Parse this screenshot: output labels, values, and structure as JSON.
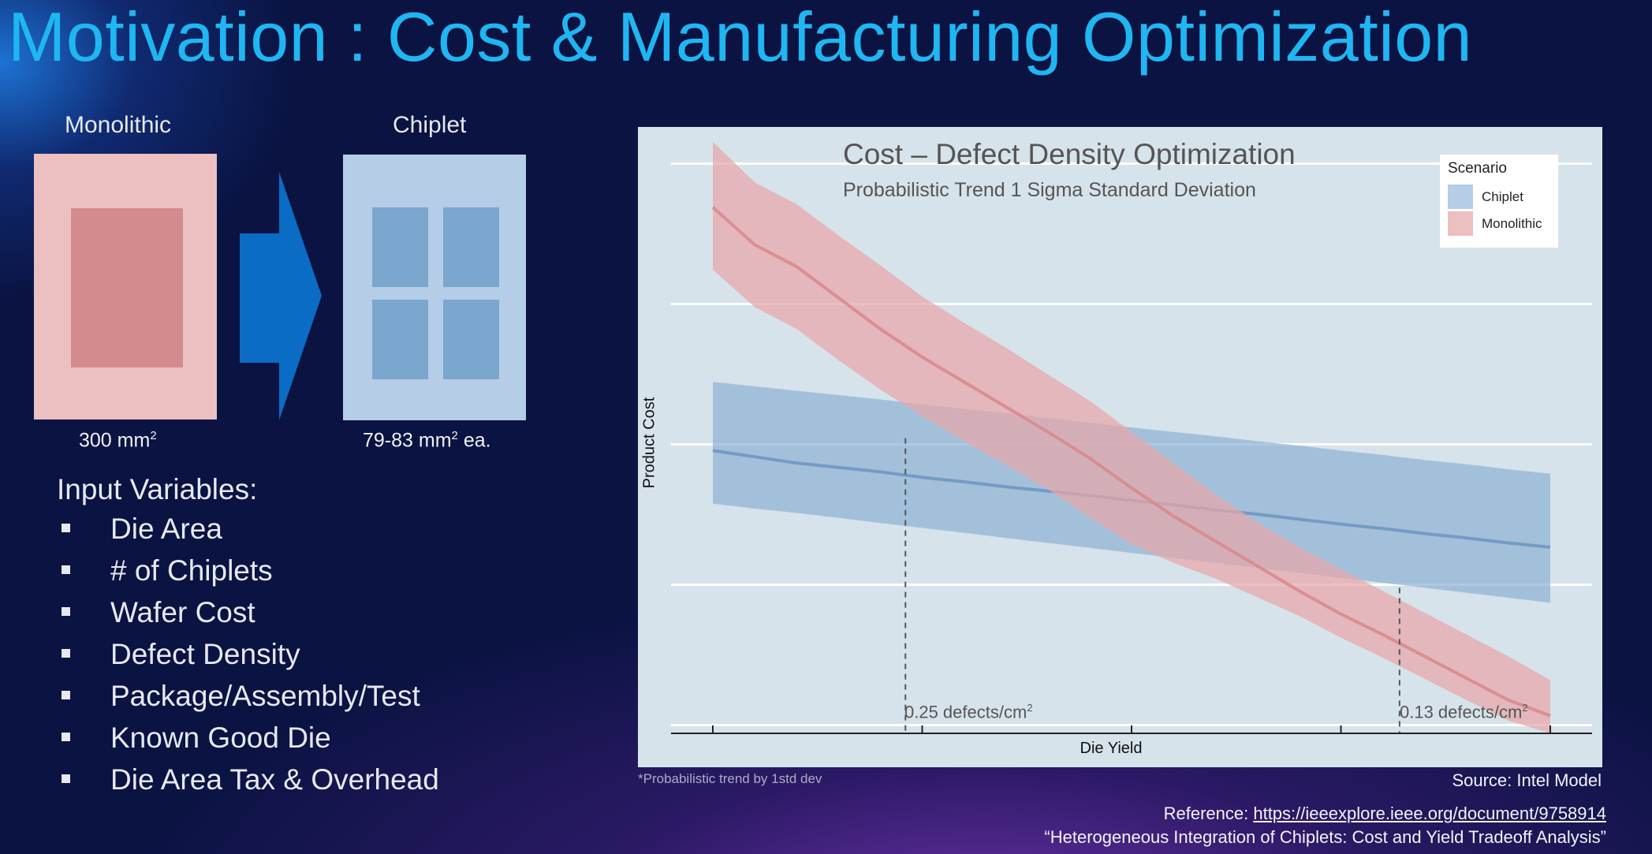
{
  "slide": {
    "title": "Motivation : Cost & Manufacturing Optimization"
  },
  "diagram": {
    "monolithic_label": "Monolithic",
    "chiplet_label": "Chiplet",
    "monolithic_area": "300 mm",
    "monolithic_area_sup": "2",
    "chiplet_area_pre": "79-83 mm",
    "chiplet_area_sup": "2",
    "chiplet_area_post": " ea.",
    "colors": {
      "monolithic_outer": "#ecbfc0",
      "monolithic_inner": "#d48b8e",
      "chiplet_outer": "#b5cde6",
      "chiplet_die": "#7ba6cd",
      "arrow": "#0a6cc4"
    }
  },
  "inputs": {
    "heading": "Input Variables:",
    "items": [
      "Die Area",
      "# of Chiplets",
      "Wafer Cost",
      "Defect Density",
      "Package/Assembly/Test",
      "Known Good Die",
      "Die Area Tax & Overhead"
    ]
  },
  "chart_data": {
    "type": "area",
    "title": "Cost – Defect Density Optimization",
    "subtitle": "Probabilistic Trend 1 Sigma Standard Deviation",
    "xlabel": "Die Yield",
    "ylabel": "Product Cost",
    "xlim": [
      0,
      1
    ],
    "ylim": [
      0,
      1
    ],
    "grid": true,
    "x_ticks": [
      0,
      0.25,
      0.5,
      0.75,
      1
    ],
    "y_grid": [
      0.05,
      0.275,
      0.5,
      0.725,
      0.95
    ],
    "legend": {
      "title": "Scenario",
      "position": "top-right",
      "entries": [
        "Chiplet",
        "Monolithic"
      ]
    },
    "x": [
      0,
      0.05,
      0.1,
      0.15,
      0.2,
      0.25,
      0.3,
      0.35,
      0.4,
      0.45,
      0.5,
      0.55,
      0.6,
      0.65,
      0.7,
      0.75,
      0.8,
      0.85,
      0.9,
      0.95,
      1
    ],
    "series": [
      {
        "name": "Chiplet",
        "color": "#8fb3d6",
        "line_color": "#6f97c2",
        "mean": [
          0.49,
          0.48,
          0.47,
          0.463,
          0.456,
          0.447,
          0.44,
          0.432,
          0.425,
          0.418,
          0.41,
          0.403,
          0.395,
          0.388,
          0.38,
          0.372,
          0.365,
          0.357,
          0.35,
          0.342,
          0.335
        ],
        "lower": [
          0.405,
          0.397,
          0.39,
          0.382,
          0.374,
          0.366,
          0.358,
          0.35,
          0.342,
          0.334,
          0.326,
          0.318,
          0.31,
          0.302,
          0.294,
          0.286,
          0.278,
          0.27,
          0.262,
          0.254,
          0.246
        ],
        "upper": [
          0.6,
          0.593,
          0.586,
          0.579,
          0.572,
          0.564,
          0.557,
          0.55,
          0.542,
          0.535,
          0.527,
          0.52,
          0.513,
          0.505,
          0.498,
          0.49,
          0.483,
          0.475,
          0.468,
          0.46,
          0.453
        ]
      },
      {
        "name": "Monolithic",
        "color": "#e8a6a9",
        "line_color": "#d98a8e",
        "mean": [
          0.88,
          0.82,
          0.785,
          0.735,
          0.685,
          0.64,
          0.6,
          0.56,
          0.52,
          0.478,
          0.43,
          0.385,
          0.345,
          0.305,
          0.265,
          0.228,
          0.195,
          0.16,
          0.125,
          0.09,
          0.065
        ],
        "lower": [
          0.78,
          0.72,
          0.685,
          0.635,
          0.588,
          0.545,
          0.505,
          0.467,
          0.428,
          0.383,
          0.34,
          0.31,
          0.285,
          0.255,
          0.225,
          0.19,
          0.158,
          0.124,
          0.09,
          0.057,
          0.037
        ],
        "upper": [
          0.985,
          0.92,
          0.885,
          0.835,
          0.787,
          0.737,
          0.695,
          0.655,
          0.612,
          0.57,
          0.52,
          0.47,
          0.42,
          0.375,
          0.335,
          0.3,
          0.265,
          0.23,
          0.195,
          0.16,
          0.122
        ]
      }
    ],
    "annotations": [
      {
        "x": 0.23,
        "text": "0.25 defects/cm",
        "sup": "2",
        "lines_to_y": 0.51
      },
      {
        "x": 0.82,
        "text": "0.13 defects/cm",
        "sup": "2",
        "lines_to_y": 0.27
      }
    ],
    "footnote": "*Probabilistic trend by 1std dev"
  },
  "footer": {
    "source": "Source: Intel Model",
    "ref_label": "Reference: ",
    "ref_url": "https://ieeexplore.ieee.org/document/9758914",
    "paper": "“Heterogeneous Integration of Chiplets: Cost and Yield Tradeoff Analysis”"
  }
}
